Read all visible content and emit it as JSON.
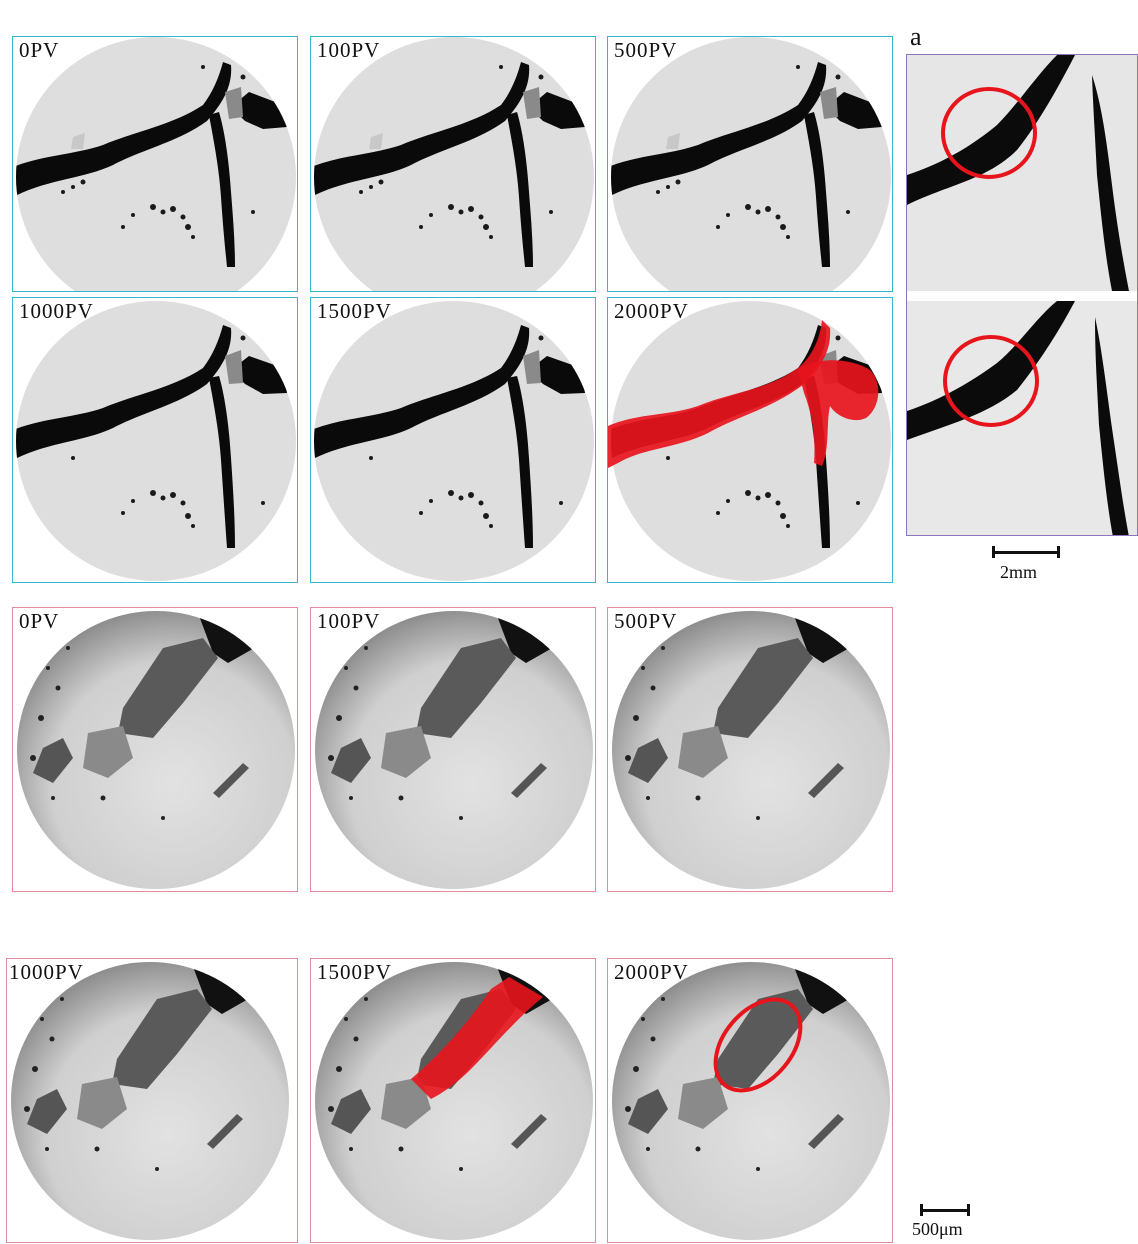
{
  "top_group": {
    "panels": [
      {
        "label": "0PV"
      },
      {
        "label": "100PV"
      },
      {
        "label": "500PV"
      },
      {
        "label": "1000PV"
      },
      {
        "label": "1500PV"
      },
      {
        "label": "2000PV"
      }
    ]
  },
  "bottom_group": {
    "panels": [
      {
        "label": "0PV"
      },
      {
        "label": "100PV"
      },
      {
        "label": "500PV"
      },
      {
        "label": "1000PV"
      },
      {
        "label": "1500PV"
      },
      {
        "label": "2000PV"
      }
    ]
  },
  "side_panel": {
    "letter": "a"
  },
  "scale_bars": {
    "top": "2mm",
    "bottom": "500μm"
  },
  "colors": {
    "top_frame": "#36b7cd",
    "bottom_frame": "#e58a9a",
    "side_frame": "#8a76b8",
    "highlight": "#e8141c"
  }
}
